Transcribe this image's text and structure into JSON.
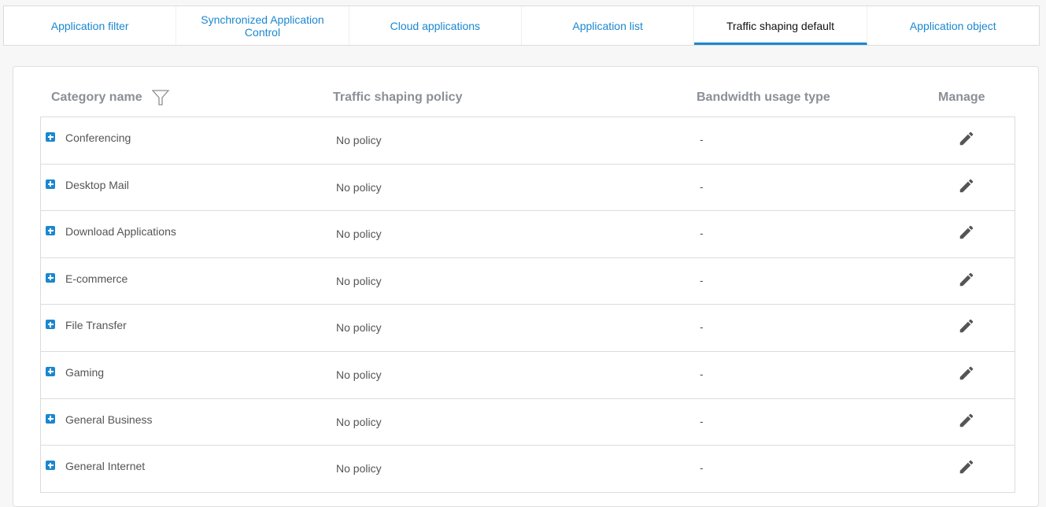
{
  "tabs": [
    {
      "label": "Application filter",
      "active": false
    },
    {
      "label": "Synchronized Application Control",
      "active": false
    },
    {
      "label": "Cloud applications",
      "active": false
    },
    {
      "label": "Application list",
      "active": false
    },
    {
      "label": "Traffic shaping default",
      "active": true
    },
    {
      "label": "Application object",
      "active": false
    }
  ],
  "table": {
    "headers": {
      "category": "Category name",
      "policy": "Traffic shaping policy",
      "bandwidth": "Bandwidth usage type",
      "manage": "Manage"
    },
    "rows": [
      {
        "category": "Conferencing",
        "policy": "No policy",
        "bandwidth": "-"
      },
      {
        "category": "Desktop Mail",
        "policy": "No policy",
        "bandwidth": "-"
      },
      {
        "category": "Download Applications",
        "policy": "No policy",
        "bandwidth": "-"
      },
      {
        "category": "E-commerce",
        "policy": "No policy",
        "bandwidth": "-"
      },
      {
        "category": "File Transfer",
        "policy": "No policy",
        "bandwidth": "-"
      },
      {
        "category": "Gaming",
        "policy": "No policy",
        "bandwidth": "-"
      },
      {
        "category": "General Business",
        "policy": "No policy",
        "bandwidth": "-"
      },
      {
        "category": "General Internet",
        "policy": "No policy",
        "bandwidth": "-"
      }
    ]
  },
  "colors": {
    "accent": "#1a87d0"
  }
}
